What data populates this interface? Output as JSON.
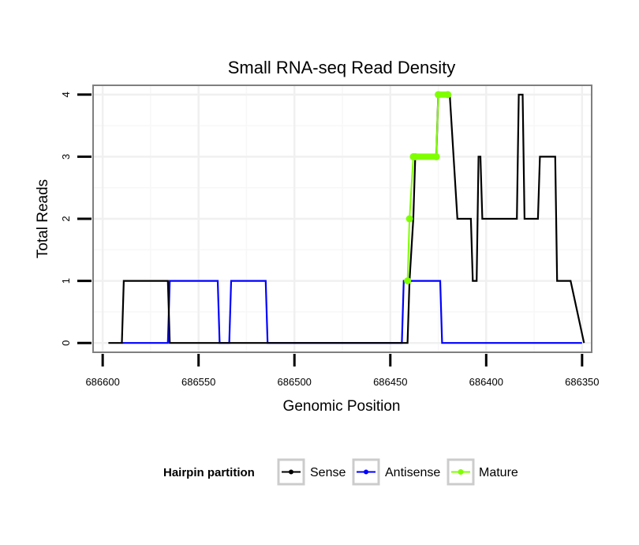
{
  "chart_data": {
    "type": "line",
    "title": "Small RNA-seq Read Density",
    "xlabel": "Genomic Position",
    "ylabel": "Total Reads",
    "xlim": [
      686605,
      686345
    ],
    "ylim": [
      -0.15,
      4.15
    ],
    "x_reversed": true,
    "x_ticks": [
      686600,
      686550,
      686500,
      686450,
      686400,
      686350
    ],
    "x_tick_labels": [
      "686600",
      "686550",
      "686500",
      "686450",
      "686400",
      "686350"
    ],
    "y_ticks": [
      0,
      1,
      2,
      3,
      4
    ],
    "y_tick_labels": [
      "0",
      "1",
      "2",
      "3",
      "4"
    ],
    "grid": true,
    "legend": {
      "title": "Hairpin partition",
      "position": "bottom",
      "entries": [
        "Sense",
        "Antisense",
        "Mature"
      ]
    },
    "series": [
      {
        "name": "Sense",
        "color": "#000000",
        "x": [
          686597,
          686590,
          686589,
          686566,
          686565,
          686563,
          686562,
          686441,
          686440,
          686438,
          686437,
          686426,
          686425,
          686420,
          686419,
          686415,
          686414,
          686408,
          686407,
          686405,
          686404,
          686403,
          686402,
          686384,
          686383,
          686381,
          686380,
          686373,
          686372,
          686364,
          686363,
          686357,
          686356,
          686349
        ],
        "values": [
          0,
          0,
          1,
          1,
          0,
          0,
          0,
          0,
          1,
          2,
          3,
          3,
          4,
          4,
          4,
          2,
          2,
          2,
          1,
          1,
          3,
          3,
          2,
          2,
          4,
          4,
          2,
          2,
          3,
          3,
          1,
          1,
          1,
          0
        ]
      },
      {
        "name": "Antisense",
        "color": "#0000ff",
        "x": [
          686590,
          686566,
          686565,
          686540,
          686539,
          686534,
          686533,
          686515,
          686514,
          686444,
          686443,
          686424,
          686423,
          686350
        ],
        "values": [
          0,
          0,
          1,
          1,
          0,
          0,
          1,
          1,
          0,
          0,
          1,
          1,
          0,
          0
        ]
      },
      {
        "name": "Mature",
        "color": "#7fff00",
        "x": [
          686441,
          686440,
          686438,
          686437,
          686426,
          686425,
          686420
        ],
        "values": [
          1,
          2,
          3,
          3,
          3,
          4,
          4
        ]
      }
    ]
  }
}
